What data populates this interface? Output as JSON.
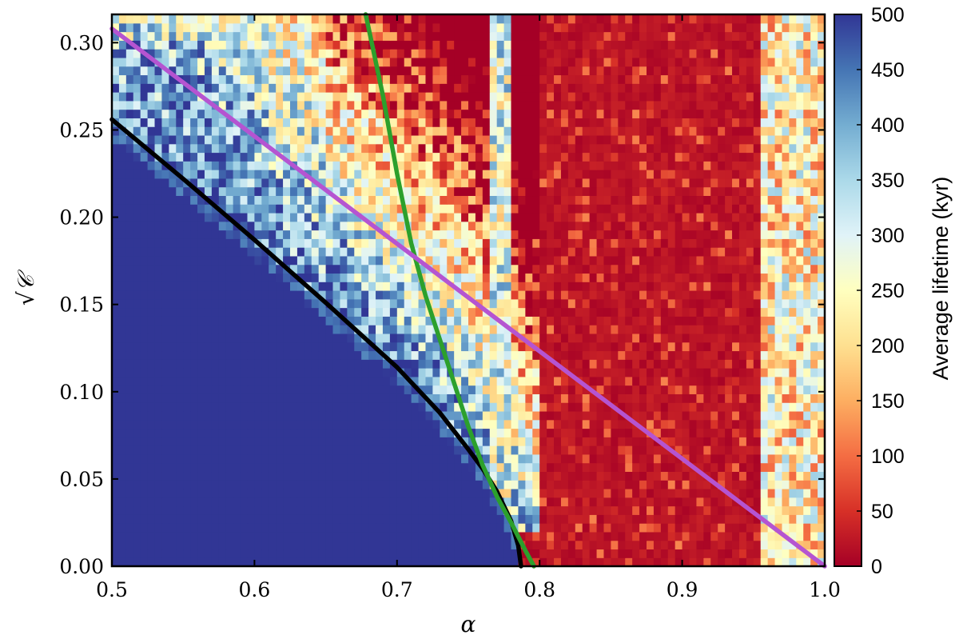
{
  "chart_data": {
    "type": "heatmap",
    "title": "",
    "xlabel": "α",
    "ylabel": "√𝒞",
    "xlim": [
      0.5,
      1.0
    ],
    "ylim": [
      0.0,
      0.3162
    ],
    "x_ticks": [
      0.5,
      0.6,
      0.7,
      0.8,
      0.9,
      1.0
    ],
    "x_tick_labels": [
      "0.5",
      "0.6",
      "0.7",
      "0.8",
      "0.9",
      "1.0"
    ],
    "y_ticks": [
      0.0,
      0.05,
      0.1,
      0.15,
      0.2,
      0.25,
      0.3
    ],
    "y_tick_labels": [
      "0.00",
      "0.05",
      "0.10",
      "0.15",
      "0.20",
      "0.25",
      "0.30"
    ],
    "grid": false,
    "heatmap": {
      "colormap": "RdYlBu",
      "nx": 100,
      "ny": 64,
      "value_range": [
        0,
        500
      ],
      "description_regions": [
        {
          "region": "below black curve",
          "value": 500
        },
        {
          "region": "near black curve to x 0.65–0.8",
          "value": "200–400"
        },
        {
          "region": "x 0.8–0.95",
          "value": "0–50"
        },
        {
          "region": "x 0.96–1.0",
          "value": "100–350"
        }
      ]
    },
    "colorbar": {
      "label": "Average lifetime (kyr)",
      "ticks": [
        0,
        50,
        100,
        150,
        200,
        250,
        300,
        350,
        400,
        450,
        500
      ],
      "tick_labels": [
        "0",
        "50",
        "100",
        "150",
        "200",
        "250",
        "300",
        "350",
        "400",
        "450",
        "500"
      ],
      "range": [
        0,
        500
      ]
    },
    "series": [
      {
        "color": "#000000",
        "x": [
          0.5,
          0.55,
          0.6,
          0.65,
          0.7,
          0.73,
          0.75,
          0.76,
          0.77,
          0.78,
          0.785,
          0.787
        ],
        "y": [
          0.256,
          0.222,
          0.187,
          0.151,
          0.114,
          0.088,
          0.067,
          0.056,
          0.043,
          0.026,
          0.012,
          0.0
        ]
      },
      {
        "color": "#2ca02c",
        "x": [
          0.678,
          0.69,
          0.7,
          0.71,
          0.72,
          0.73,
          0.74,
          0.75,
          0.76,
          0.77,
          0.78,
          0.79,
          0.796
        ],
        "y": [
          0.318,
          0.27,
          0.225,
          0.185,
          0.155,
          0.13,
          0.105,
          0.08,
          0.058,
          0.04,
          0.025,
          0.009,
          0.0
        ]
      },
      {
        "color": "#b554d1",
        "x": [
          0.5,
          1.0
        ],
        "y": [
          0.308,
          0.0
        ]
      }
    ]
  }
}
